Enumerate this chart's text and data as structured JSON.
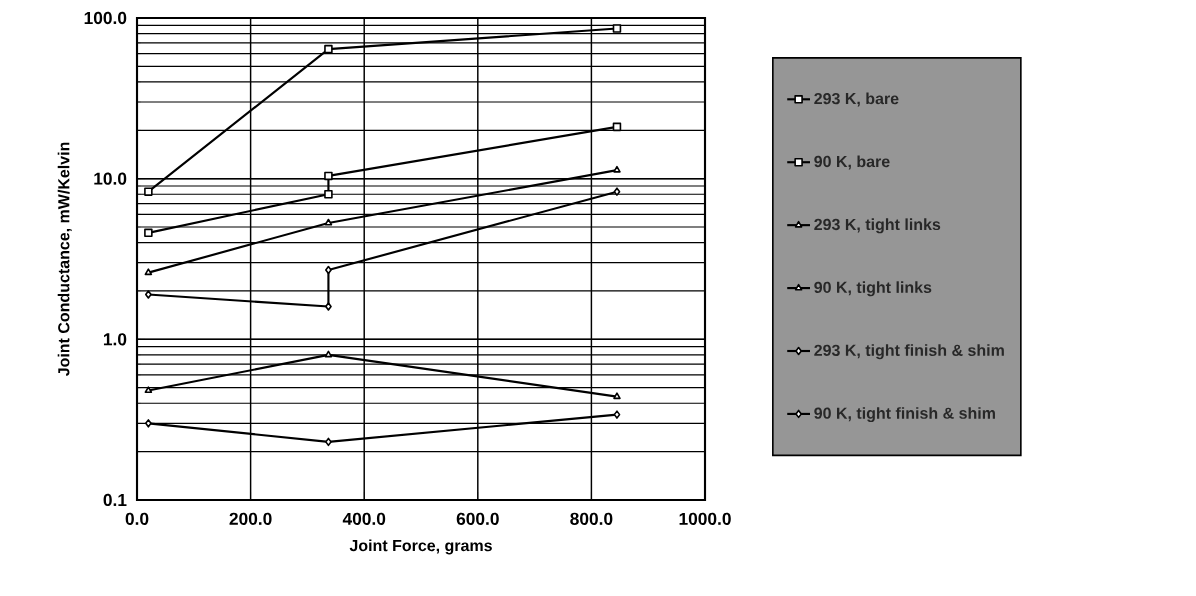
{
  "chart_data": {
    "type": "line",
    "xlabel": "Joint  Force,  grams",
    "ylabel": "Joint Conductance, mW/Kelvin",
    "log": "y",
    "grid": true,
    "legend": "right",
    "line_style": "solid",
    "xlim": [
      0,
      1000
    ],
    "xticks": [
      {
        "value": 0,
        "label": "0.0"
      },
      {
        "value": 200,
        "label": "200.0"
      },
      {
        "value": 400,
        "label": "400.0"
      },
      {
        "value": 600,
        "label": "600.0"
      },
      {
        "value": 800,
        "label": "800.0"
      },
      {
        "value": 1000,
        "label": "1000.0"
      }
    ],
    "ylim": [
      0.1,
      100
    ],
    "yticks": [
      {
        "value": 0.1,
        "label": "0.1"
      },
      {
        "value": 1,
        "label": "1.0"
      },
      {
        "value": 10,
        "label": "10.0"
      },
      {
        "value": 100,
        "label": "100.0"
      }
    ],
    "series": [
      {
        "name": "293 K, bare",
        "color": "#000000",
        "marker": "square",
        "x": [
          20,
          337,
          845
        ],
        "values": [
          8.3,
          64,
          86
        ]
      },
      {
        "name": "90 K, bare",
        "color": "#000000",
        "marker": "square",
        "x": [
          20,
          337,
          337,
          845
        ],
        "values": [
          4.6,
          8.0,
          10.4,
          21
        ]
      },
      {
        "name": "293 K, tight links",
        "color": "#000000",
        "marker": "triangle",
        "x": [
          20,
          337,
          845
        ],
        "values": [
          2.6,
          5.3,
          11.3
        ]
      },
      {
        "name": "90 K, tight links",
        "color": "#000000",
        "marker": "triangle",
        "x": [
          20,
          337,
          845
        ],
        "values": [
          0.48,
          0.8,
          0.44
        ]
      },
      {
        "name": "293 K, tight finish & shim",
        "color": "#000000",
        "marker": "diamond",
        "x": [
          20,
          337,
          337,
          845
        ],
        "values": [
          1.9,
          1.6,
          2.7,
          8.3
        ]
      },
      {
        "name": "90 K, tight finish & shim",
        "color": "#000000",
        "marker": "diamond",
        "x": [
          20,
          337,
          845
        ],
        "values": [
          0.3,
          0.23,
          0.34
        ]
      }
    ]
  }
}
